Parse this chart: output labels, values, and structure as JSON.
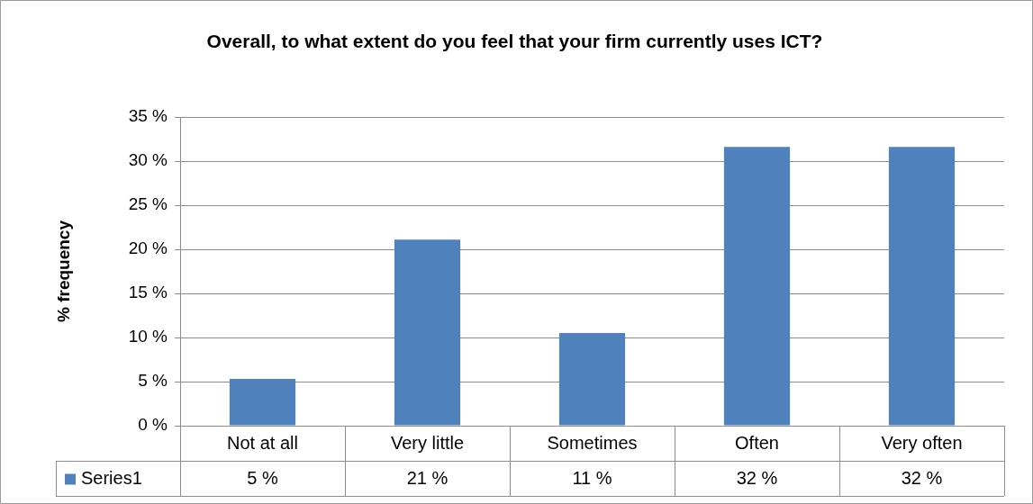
{
  "chart_data": {
    "type": "bar",
    "title": "Overall, to what extent do you feel that your firm currently uses ICT?",
    "ylabel": "% frequency",
    "categories": [
      "Not at all",
      "Very little",
      "Sometimes",
      "Often",
      "Very often"
    ],
    "series": [
      {
        "name": "Series1",
        "color": "#4f81bd",
        "values": [
          5.3,
          21.1,
          10.5,
          31.6,
          31.6
        ],
        "value_labels": [
          "5 %",
          "21 %",
          "11 %",
          "32 %",
          "32 %"
        ]
      }
    ],
    "ylim": [
      0,
      35
    ],
    "yticks": [
      {
        "value": 0,
        "label": "0 %"
      },
      {
        "value": 5,
        "label": "5 %"
      },
      {
        "value": 10,
        "label": "10 %"
      },
      {
        "value": 15,
        "label": "15 %"
      },
      {
        "value": 20,
        "label": "20 %"
      },
      {
        "value": 25,
        "label": "25 %"
      },
      {
        "value": 30,
        "label": "30 %"
      },
      {
        "value": 35,
        "label": "35 %"
      }
    ],
    "grid": "y",
    "legend": "bottom"
  }
}
